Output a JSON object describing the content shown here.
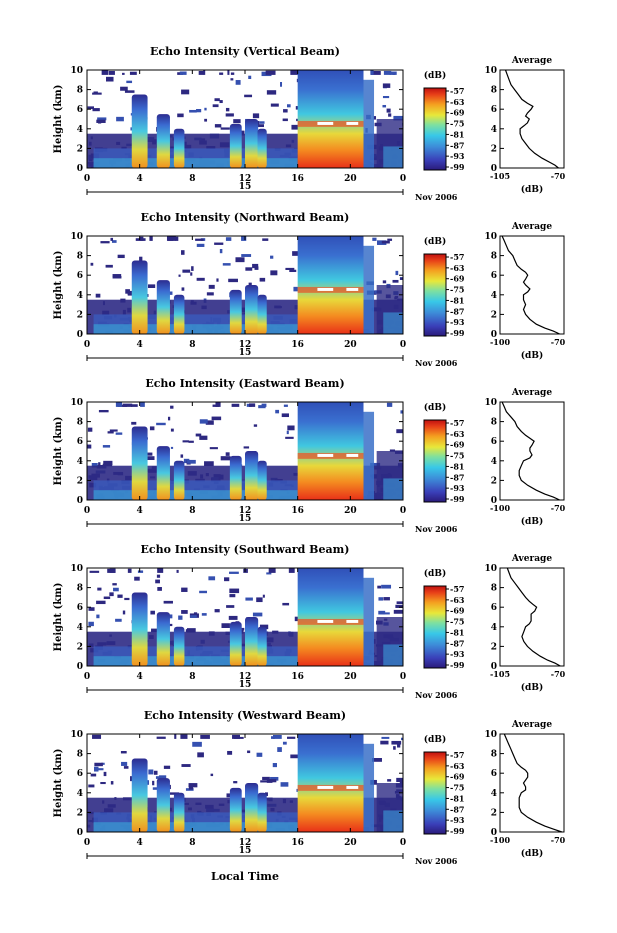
{
  "chart_data": [
    {
      "type": "heatmap",
      "title": "Echo Intensity (Vertical Beam)",
      "ylabel": "Height (km)",
      "yticks": [
        "0",
        "2",
        "4",
        "6",
        "8",
        "10"
      ],
      "ylim": [
        0,
        10
      ],
      "xticks": [
        "0",
        "4",
        "8",
        "12",
        "16",
        "20",
        "0"
      ],
      "date_label": "15",
      "date_suffix": "Nov 2006",
      "xlim": [
        0,
        24
      ],
      "cbar_unit": "(dB)",
      "cbar_labels": [
        "-57",
        "-63",
        "-69",
        "-75",
        "-81",
        "-87",
        "-93",
        "-99"
      ],
      "avg_title": "Average",
      "avg_xlabel": "(dB)",
      "avg_xticks": [
        "-105",
        "-70"
      ],
      "avg_xlim": [
        -105,
        -70
      ],
      "avg_ylim": [
        0,
        10
      ],
      "profile": [
        [
          0,
          -73
        ],
        [
          0.3,
          -75
        ],
        [
          0.6,
          -78
        ],
        [
          1,
          -82
        ],
        [
          1.5,
          -86
        ],
        [
          2,
          -89
        ],
        [
          2.5,
          -91
        ],
        [
          3,
          -93
        ],
        [
          3.5,
          -94
        ],
        [
          4,
          -94
        ],
        [
          4.3,
          -92
        ],
        [
          4.6,
          -90
        ],
        [
          5,
          -89
        ],
        [
          5.3,
          -91
        ],
        [
          5.6,
          -90
        ],
        [
          6,
          -88
        ],
        [
          6.3,
          -87
        ],
        [
          6.6,
          -90
        ],
        [
          7,
          -93
        ],
        [
          7.5,
          -95
        ],
        [
          8,
          -97
        ],
        [
          8.5,
          -99
        ],
        [
          9,
          -100
        ],
        [
          9.5,
          -101
        ],
        [
          10,
          -102
        ]
      ]
    },
    {
      "type": "heatmap",
      "title": "Echo Intensity (Northward Beam)",
      "ylabel": "Height (km)",
      "yticks": [
        "0",
        "2",
        "4",
        "6",
        "8",
        "10"
      ],
      "ylim": [
        0,
        10
      ],
      "xticks": [
        "0",
        "4",
        "8",
        "12",
        "16",
        "20",
        "0"
      ],
      "date_label": "15",
      "date_suffix": "Nov 2006",
      "xlim": [
        0,
        24
      ],
      "cbar_unit": "(dB)",
      "cbar_labels": [
        "-57",
        "-63",
        "-69",
        "-75",
        "-81",
        "-87",
        "-93",
        "-99"
      ],
      "avg_title": "Average",
      "avg_xlabel": "(dB)",
      "avg_xticks": [
        "-100",
        "-70"
      ],
      "avg_xlim": [
        -100,
        -70
      ],
      "avg_ylim": [
        0,
        10
      ],
      "profile": [
        [
          0,
          -72
        ],
        [
          0.3,
          -75
        ],
        [
          0.6,
          -79
        ],
        [
          1,
          -83
        ],
        [
          1.5,
          -86
        ],
        [
          2,
          -88
        ],
        [
          2.5,
          -89
        ],
        [
          3,
          -88
        ],
        [
          3.5,
          -89
        ],
        [
          4,
          -89
        ],
        [
          4.3,
          -87
        ],
        [
          4.6,
          -86
        ],
        [
          5,
          -88
        ],
        [
          5.3,
          -89
        ],
        [
          5.6,
          -88
        ],
        [
          6,
          -87
        ],
        [
          6.3,
          -88
        ],
        [
          6.6,
          -90
        ],
        [
          7,
          -92
        ],
        [
          7.5,
          -93
        ],
        [
          8,
          -94
        ],
        [
          8.5,
          -96
        ],
        [
          9,
          -97
        ],
        [
          9.5,
          -98
        ],
        [
          10,
          -99
        ]
      ]
    },
    {
      "type": "heatmap",
      "title": "Echo Intensity (Eastward Beam)",
      "ylabel": "Height (km)",
      "yticks": [
        "0",
        "2",
        "4",
        "6",
        "8",
        "10"
      ],
      "ylim": [
        0,
        10
      ],
      "xticks": [
        "0",
        "4",
        "8",
        "12",
        "16",
        "20",
        "0"
      ],
      "date_label": "15",
      "date_suffix": "Nov 2006",
      "xlim": [
        0,
        24
      ],
      "cbar_unit": "(dB)",
      "cbar_labels": [
        "-57",
        "-63",
        "-69",
        "-75",
        "-81",
        "-87",
        "-93",
        "-99"
      ],
      "avg_title": "Average",
      "avg_xlabel": "(dB)",
      "avg_xticks": [
        "-100",
        "-70"
      ],
      "avg_xlim": [
        -100,
        -70
      ],
      "avg_ylim": [
        0,
        10
      ],
      "profile": [
        [
          0,
          -72
        ],
        [
          0.3,
          -75
        ],
        [
          0.6,
          -79
        ],
        [
          1,
          -83
        ],
        [
          1.5,
          -87
        ],
        [
          2,
          -90
        ],
        [
          2.5,
          -91
        ],
        [
          3,
          -91
        ],
        [
          3.5,
          -90
        ],
        [
          4,
          -89
        ],
        [
          4.3,
          -86
        ],
        [
          4.6,
          -85
        ],
        [
          5,
          -86
        ],
        [
          5.3,
          -86
        ],
        [
          5.6,
          -85
        ],
        [
          6,
          -84
        ],
        [
          6.3,
          -86
        ],
        [
          6.6,
          -88
        ],
        [
          7,
          -90
        ],
        [
          7.5,
          -92
        ],
        [
          8,
          -93
        ],
        [
          8.5,
          -95
        ],
        [
          9,
          -97
        ],
        [
          9.5,
          -98
        ],
        [
          10,
          -99
        ]
      ]
    },
    {
      "type": "heatmap",
      "title": "Echo Intensity (Southward Beam)",
      "ylabel": "Height (km)",
      "yticks": [
        "0",
        "2",
        "4",
        "6",
        "8",
        "10"
      ],
      "ylim": [
        0,
        10
      ],
      "xticks": [
        "0",
        "4",
        "8",
        "12",
        "16",
        "20",
        "0"
      ],
      "date_label": "15",
      "date_suffix": "Nov 2006",
      "xlim": [
        0,
        24
      ],
      "cbar_unit": "(dB)",
      "cbar_labels": [
        "-57",
        "-63",
        "-69",
        "-75",
        "-81",
        "-87",
        "-93",
        "-99"
      ],
      "avg_title": "Average",
      "avg_xlabel": "(dB)",
      "avg_xticks": [
        "-105",
        "-70"
      ],
      "avg_xlim": [
        -105,
        -70
      ],
      "avg_ylim": [
        0,
        10
      ],
      "profile": [
        [
          0,
          -72
        ],
        [
          0.3,
          -75
        ],
        [
          0.6,
          -79
        ],
        [
          1,
          -83
        ],
        [
          1.5,
          -87
        ],
        [
          2,
          -90
        ],
        [
          2.5,
          -92
        ],
        [
          3,
          -93
        ],
        [
          3.5,
          -92
        ],
        [
          4,
          -91
        ],
        [
          4.3,
          -89
        ],
        [
          4.6,
          -88
        ],
        [
          5,
          -88
        ],
        [
          5.3,
          -88
        ],
        [
          5.6,
          -86
        ],
        [
          6,
          -85
        ],
        [
          6.3,
          -87
        ],
        [
          6.6,
          -89
        ],
        [
          7,
          -91
        ],
        [
          7.5,
          -93
        ],
        [
          8,
          -95
        ],
        [
          8.5,
          -97
        ],
        [
          9,
          -99
        ],
        [
          9.5,
          -100
        ],
        [
          10,
          -101
        ]
      ]
    },
    {
      "type": "heatmap",
      "title": "Echo Intensity (Westward Beam)",
      "ylabel": "Height (km)",
      "yticks": [
        "0",
        "2",
        "4",
        "6",
        "8",
        "10"
      ],
      "ylim": [
        0,
        10
      ],
      "xticks": [
        "0",
        "4",
        "8",
        "12",
        "16",
        "20",
        "0"
      ],
      "date_label": "15",
      "date_suffix": "Nov 2006",
      "xlim": [
        0,
        24
      ],
      "cbar_unit": "(dB)",
      "cbar_labels": [
        "-57",
        "-63",
        "-69",
        "-75",
        "-81",
        "-87",
        "-93",
        "-99"
      ],
      "avg_title": "Average",
      "avg_xlabel": "(dB)",
      "avg_xticks": [
        "-100",
        "-70"
      ],
      "avg_xlim": [
        -100,
        -70
      ],
      "avg_ylim": [
        0,
        10
      ],
      "profile": [
        [
          0,
          -71
        ],
        [
          0.3,
          -75
        ],
        [
          0.6,
          -79
        ],
        [
          1,
          -83
        ],
        [
          1.5,
          -87
        ],
        [
          2,
          -90
        ],
        [
          2.5,
          -91
        ],
        [
          3,
          -91
        ],
        [
          3.5,
          -91
        ],
        [
          4,
          -90
        ],
        [
          4.3,
          -88
        ],
        [
          4.6,
          -88
        ],
        [
          5,
          -89
        ],
        [
          5.3,
          -88
        ],
        [
          5.6,
          -87
        ],
        [
          6,
          -87
        ],
        [
          6.3,
          -88
        ],
        [
          6.6,
          -90
        ],
        [
          7,
          -92
        ],
        [
          7.5,
          -93
        ],
        [
          8,
          -94
        ],
        [
          8.5,
          -95
        ],
        [
          9,
          -96
        ],
        [
          9.5,
          -97
        ],
        [
          10,
          -98
        ]
      ]
    }
  ],
  "bottom_xlabel": "Local Time"
}
